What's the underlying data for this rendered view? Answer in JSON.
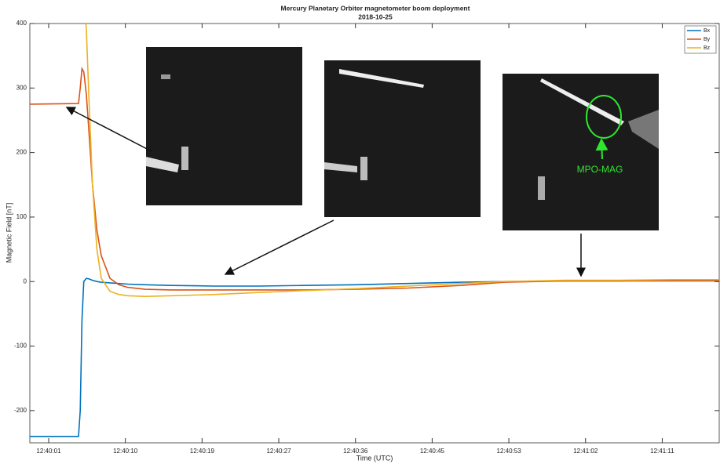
{
  "chart_data": {
    "type": "line",
    "title": "Mercury Planetary Orbiter magnetometer boom deployment",
    "subtitle": "2018-10-25",
    "x_label": "Time (UTC)",
    "y_label": "Magnetic Field [nT]",
    "annotation": "MPO-MAG",
    "x": [
      -1.15,
      4.4,
      4.6,
      4.8,
      5.0,
      5.3,
      5.6,
      6.0,
      6.5,
      7,
      8,
      9,
      10,
      12,
      15,
      20,
      25,
      30,
      36,
      42,
      48,
      53,
      60,
      66,
      72,
      77.5
    ],
    "series": [
      {
        "name": "Bx",
        "color": "#0072bd",
        "values": [
          -240,
          -240,
          -200,
          -60,
          0,
          5,
          4,
          2,
          0,
          -1,
          -2,
          -3,
          -4,
          -5,
          -6,
          -7,
          -7,
          -6,
          -5,
          -3,
          -1,
          0,
          1,
          1,
          2,
          2
        ]
      },
      {
        "name": "By",
        "color": "#d95319",
        "values": [
          275,
          276,
          300,
          330,
          325,
          290,
          230,
          150,
          80,
          40,
          5,
          -5,
          -9,
          -12,
          -13,
          -13,
          -13,
          -13,
          -12,
          -10,
          -6,
          -1,
          1,
          1,
          1,
          1
        ]
      },
      {
        "name": "Bz",
        "color": "#edb120",
        "values": [
          null,
          null,
          null,
          null,
          450,
          390,
          280,
          150,
          50,
          5,
          -15,
          -20,
          -22,
          -23,
          -22,
          -20,
          -17,
          -14,
          -11,
          -7,
          -3,
          0,
          2,
          2,
          3,
          3
        ]
      }
    ],
    "xlim": [
      -1.15,
      77.5
    ],
    "xticks": [
      {
        "value": 1,
        "label": "12:40:01"
      },
      {
        "value": 9.75,
        "label": "12:40:10"
      },
      {
        "value": 18.5,
        "label": "12:40:19"
      },
      {
        "value": 27.25,
        "label": "12:40:27"
      },
      {
        "value": 36,
        "label": "12:40:36"
      },
      {
        "value": 44.75,
        "label": "12:40:45"
      },
      {
        "value": 53.5,
        "label": "12:40:53"
      },
      {
        "value": 62.25,
        "label": "12:41:02"
      },
      {
        "value": 71,
        "label": "12:41:11"
      }
    ],
    "ylim": [
      -250,
      400
    ],
    "yticks": [
      -200,
      -100,
      0,
      100,
      200,
      300,
      400
    ],
    "grid": false,
    "legend": "top-right"
  }
}
